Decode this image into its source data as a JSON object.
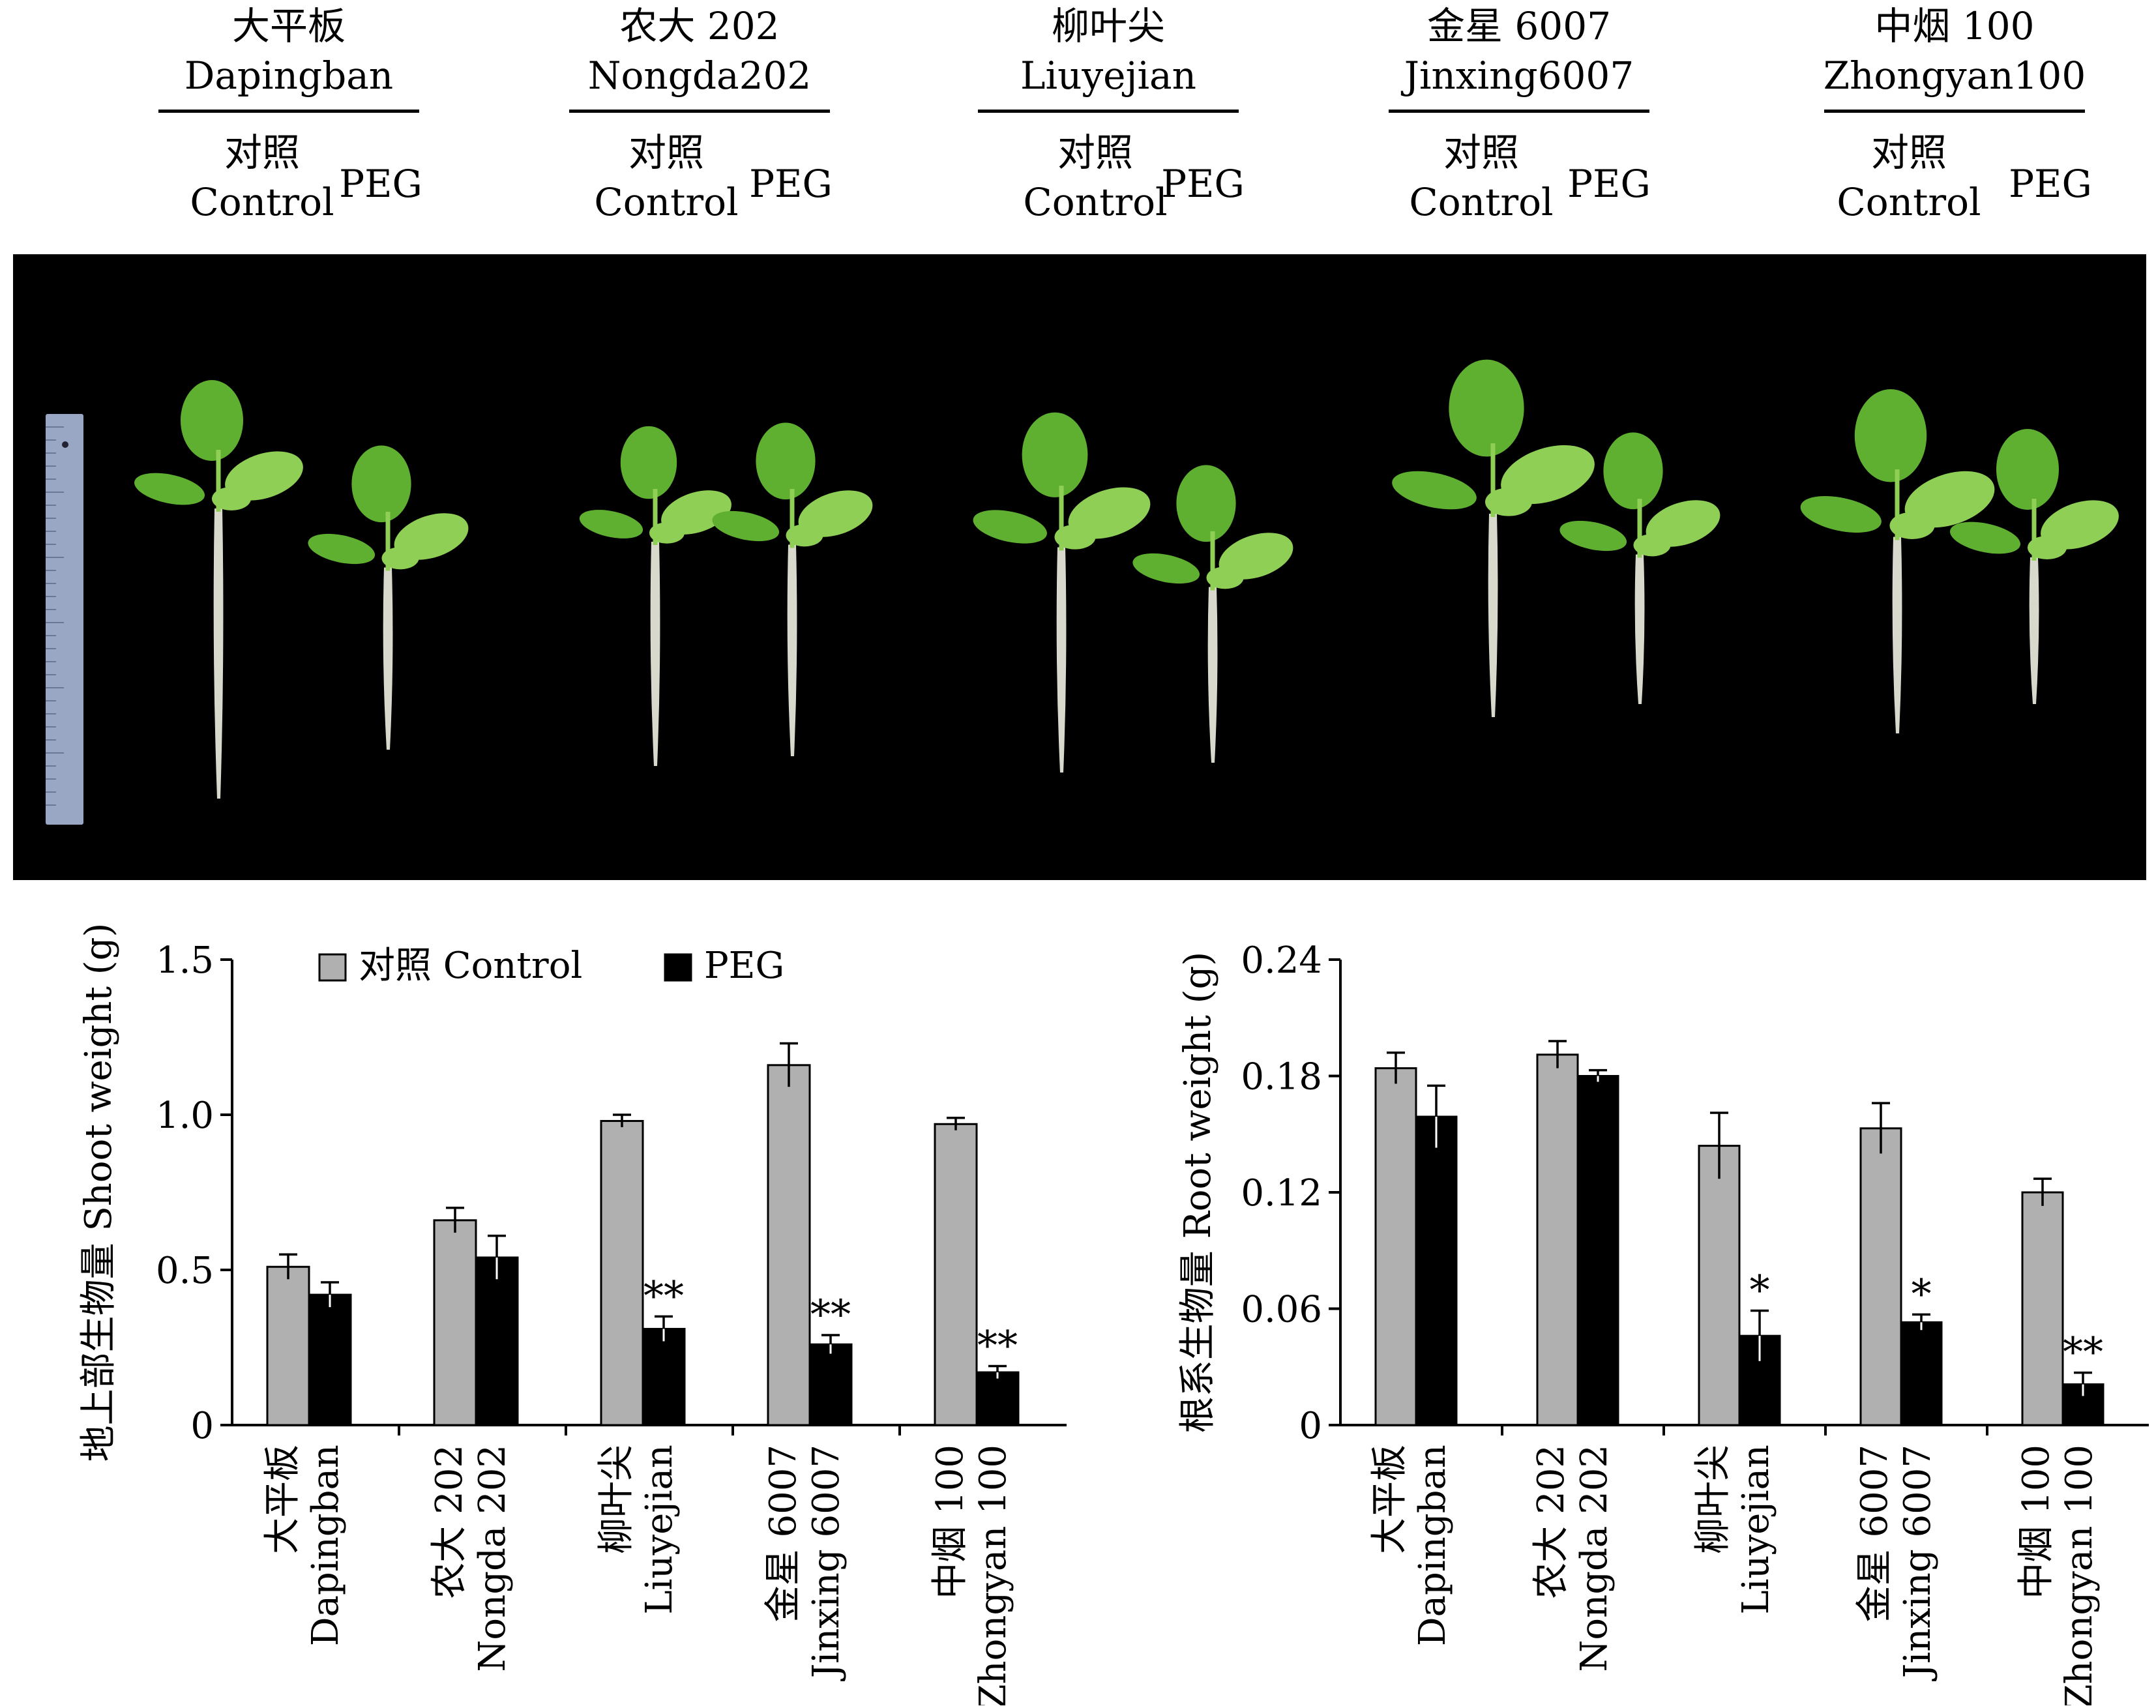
{
  "header": {
    "cultivars": [
      {
        "zh": "大平板",
        "en": "Dapingban"
      },
      {
        "zh": "农大 202",
        "en": "Nongda202"
      },
      {
        "zh": "柳叶尖",
        "en": "Liuyejian"
      },
      {
        "zh": "金星 6007",
        "en": "Jinxing6007"
      },
      {
        "zh": "中烟 100",
        "en": "Zhongyan100"
      }
    ],
    "control_zh": "对照",
    "control_en": "Control",
    "peg": "PEG"
  },
  "colors": {
    "control": "#b0b0b0",
    "peg": "#000000",
    "photo_bg": "#000000",
    "leaf": "#5fb030",
    "leaf_light": "#8fcf55",
    "root": "#d8d8cc",
    "ruler": "#9aa7c4"
  },
  "chart_data": [
    {
      "type": "bar",
      "ylabel": "地上部生物量 Shoot weight (g)",
      "ylim": [
        0,
        1.5
      ],
      "yticks": [
        "0",
        "0.5",
        "1.0",
        "1.5"
      ],
      "ytick_values": [
        0,
        0.5,
        1.0,
        1.5
      ],
      "categories": [
        {
          "zh": "大平板",
          "en": "Dapingban"
        },
        {
          "zh": "农大 202",
          "en": "Nongda 202"
        },
        {
          "zh": "柳叶尖",
          "en": "Liuyejian"
        },
        {
          "zh": "金星 6007",
          "en": "Jinxing 6007"
        },
        {
          "zh": "中烟 100",
          "en": "Zhongyan 100"
        }
      ],
      "legend": {
        "position": "top",
        "entries": [
          "对照 Control",
          "PEG"
        ]
      },
      "series": [
        {
          "name": "对照 Control",
          "values": [
            0.51,
            0.66,
            0.98,
            1.16,
            0.97
          ],
          "errors": [
            0.04,
            0.04,
            0.02,
            0.07,
            0.02
          ],
          "sig": [
            "",
            "",
            "",
            "",
            ""
          ]
        },
        {
          "name": "PEG",
          "values": [
            0.42,
            0.54,
            0.31,
            0.26,
            0.17
          ],
          "errors": [
            0.04,
            0.07,
            0.04,
            0.03,
            0.02
          ],
          "sig": [
            "",
            "",
            "**",
            "**",
            "**"
          ]
        }
      ]
    },
    {
      "type": "bar",
      "ylabel": "根系生物量 Root weight (g)",
      "ylim": [
        0,
        0.24
      ],
      "yticks": [
        "0",
        "0.06",
        "0.12",
        "0.18",
        "0.24"
      ],
      "ytick_values": [
        0,
        0.06,
        0.12,
        0.18,
        0.24
      ],
      "categories": [
        {
          "zh": "大平板",
          "en": "Dapingban"
        },
        {
          "zh": "农大 202",
          "en": "Nongda 202"
        },
        {
          "zh": "柳叶尖",
          "en": "Liuyejian"
        },
        {
          "zh": "金星 6007",
          "en": "Jinxing 6007"
        },
        {
          "zh": "中烟 100",
          "en": "Zhongyan 100"
        }
      ],
      "legend": null,
      "series": [
        {
          "name": "对照 Control",
          "values": [
            0.184,
            0.191,
            0.144,
            0.153,
            0.12
          ],
          "errors": [
            0.008,
            0.007,
            0.017,
            0.013,
            0.007
          ],
          "sig": [
            "",
            "",
            "",
            "",
            ""
          ]
        },
        {
          "name": "PEG",
          "values": [
            0.159,
            0.18,
            0.046,
            0.053,
            0.021
          ],
          "errors": [
            0.016,
            0.003,
            0.013,
            0.004,
            0.006
          ],
          "sig": [
            "",
            "",
            "*",
            "*",
            "**"
          ]
        }
      ]
    }
  ]
}
